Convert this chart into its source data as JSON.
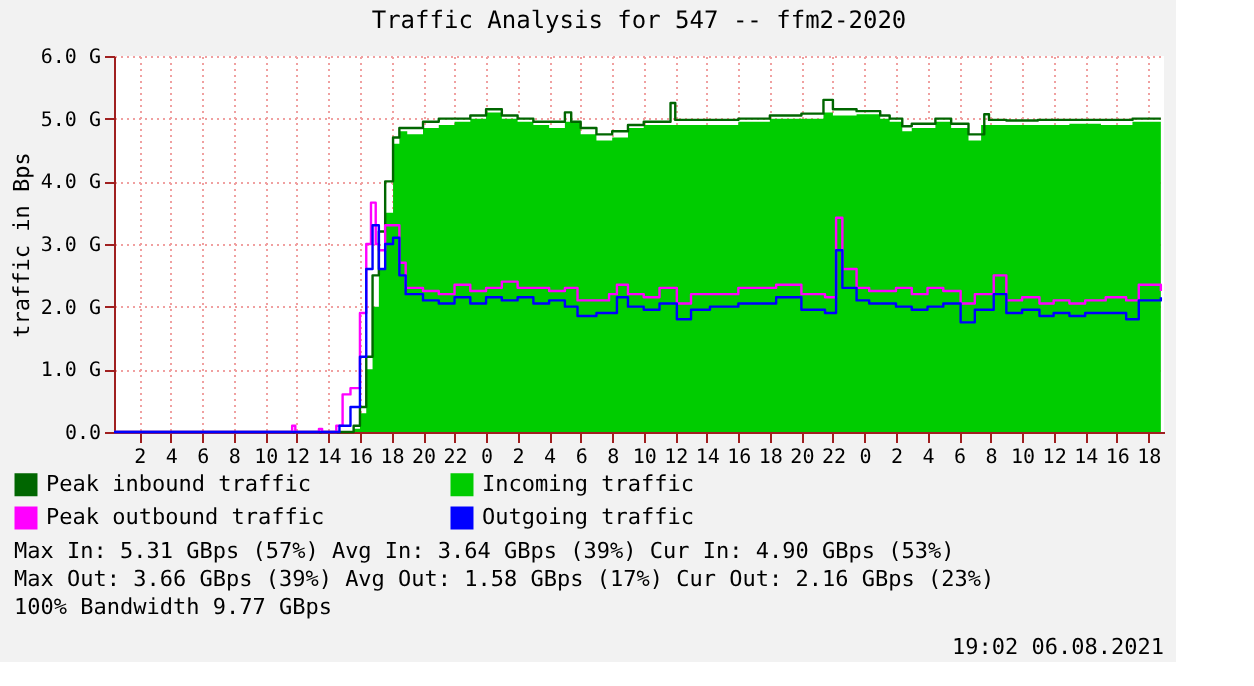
{
  "chart_data": {
    "type": "step",
    "title": "Traffic Analysis for 547 -- ffm2-2020",
    "ylabel": "traffic in Bps",
    "xlim": [
      "2021-08-04T00:24",
      "2021-08-06T19:00"
    ],
    "xticks": [
      {
        "value": "2021-08-04T02:00",
        "label": "2"
      },
      {
        "value": "2021-08-04T04:00",
        "label": "4"
      },
      {
        "value": "2021-08-04T06:00",
        "label": "6"
      },
      {
        "value": "2021-08-04T08:00",
        "label": "8"
      },
      {
        "value": "2021-08-04T10:00",
        "label": "10"
      },
      {
        "value": "2021-08-04T12:00",
        "label": "12"
      },
      {
        "value": "2021-08-04T14:00",
        "label": "14"
      },
      {
        "value": "2021-08-04T16:00",
        "label": "16"
      },
      {
        "value": "2021-08-04T18:00",
        "label": "18"
      },
      {
        "value": "2021-08-04T20:00",
        "label": "20"
      },
      {
        "value": "2021-08-04T22:00",
        "label": "22"
      },
      {
        "value": "2021-08-05T00:00",
        "label": "0"
      },
      {
        "value": "2021-08-05T02:00",
        "label": "2"
      },
      {
        "value": "2021-08-05T04:00",
        "label": "4"
      },
      {
        "value": "2021-08-05T06:00",
        "label": "6"
      },
      {
        "value": "2021-08-05T08:00",
        "label": "8"
      },
      {
        "value": "2021-08-05T10:00",
        "label": "10"
      },
      {
        "value": "2021-08-05T12:00",
        "label": "12"
      },
      {
        "value": "2021-08-05T14:00",
        "label": "14"
      },
      {
        "value": "2021-08-05T16:00",
        "label": "16"
      },
      {
        "value": "2021-08-05T18:00",
        "label": "18"
      },
      {
        "value": "2021-08-05T20:00",
        "label": "20"
      },
      {
        "value": "2021-08-05T22:00",
        "label": "22"
      },
      {
        "value": "2021-08-06T00:00",
        "label": "0"
      },
      {
        "value": "2021-08-06T02:00",
        "label": "2"
      },
      {
        "value": "2021-08-06T04:00",
        "label": "4"
      },
      {
        "value": "2021-08-06T06:00",
        "label": "6"
      },
      {
        "value": "2021-08-06T08:00",
        "label": "8"
      },
      {
        "value": "2021-08-06T10:00",
        "label": "10"
      },
      {
        "value": "2021-08-06T12:00",
        "label": "12"
      },
      {
        "value": "2021-08-06T14:00",
        "label": "14"
      },
      {
        "value": "2021-08-06T16:00",
        "label": "16"
      },
      {
        "value": "2021-08-06T18:00",
        "label": "18"
      }
    ],
    "ylim": [
      0,
      6
    ],
    "yticks": [
      {
        "value": 0,
        "label": "0.0"
      },
      {
        "value": 1,
        "label": "1.0 G"
      },
      {
        "value": 2,
        "label": "2.0 G"
      },
      {
        "value": 3,
        "label": "3.0 G"
      },
      {
        "value": 4,
        "label": "4.0 G"
      },
      {
        "value": 5,
        "label": "5.0 G"
      },
      {
        "value": 6,
        "label": "6.0 G"
      }
    ],
    "grid": true,
    "legend": "bottom",
    "series": [
      {
        "name": "Peak inbound traffic",
        "color": "#006600",
        "x": [
          "2021-08-04T00:24",
          "2021-08-04T15:12",
          "2021-08-04T15:36",
          "2021-08-04T16:00",
          "2021-08-04T16:24",
          "2021-08-04T16:48",
          "2021-08-04T17:12",
          "2021-08-04T17:36",
          "2021-08-04T18:06",
          "2021-08-04T18:30",
          "2021-08-04T19:00",
          "2021-08-04T20:00",
          "2021-08-04T21:00",
          "2021-08-04T22:00",
          "2021-08-04T23:00",
          "2021-08-05T00:00",
          "2021-08-05T01:00",
          "2021-08-05T02:00",
          "2021-08-05T03:00",
          "2021-08-05T04:00",
          "2021-08-05T05:00",
          "2021-08-05T05:24",
          "2021-08-05T06:00",
          "2021-08-05T07:00",
          "2021-08-05T08:00",
          "2021-08-05T09:00",
          "2021-08-05T10:00",
          "2021-08-05T11:30",
          "2021-08-05T11:42",
          "2021-08-05T12:00",
          "2021-08-05T14:00",
          "2021-08-05T16:00",
          "2021-08-05T18:00",
          "2021-08-05T20:00",
          "2021-08-05T21:24",
          "2021-08-05T22:00",
          "2021-08-05T23:30",
          "2021-08-06T01:00",
          "2021-08-06T01:36",
          "2021-08-06T02:24",
          "2021-08-06T03:00",
          "2021-08-06T04:30",
          "2021-08-06T05:30",
          "2021-08-06T06:36",
          "2021-08-06T07:36",
          "2021-08-06T07:54",
          "2021-08-06T09:00",
          "2021-08-06T11:00",
          "2021-08-06T13:00",
          "2021-08-06T15:00",
          "2021-08-06T17:00",
          "2021-08-06T18:48"
        ],
        "values": [
          0,
          0,
          0.1,
          0.4,
          1.2,
          2.5,
          3.2,
          4.0,
          4.7,
          4.85,
          4.85,
          4.95,
          5.0,
          5.0,
          5.05,
          5.15,
          5.05,
          5.0,
          4.95,
          4.95,
          5.1,
          4.95,
          4.85,
          4.75,
          4.8,
          4.9,
          4.95,
          4.95,
          5.25,
          4.98,
          4.98,
          5.0,
          5.05,
          5.08,
          5.3,
          5.15,
          5.12,
          5.05,
          5.0,
          4.88,
          4.92,
          5.0,
          4.92,
          4.75,
          5.07,
          4.98,
          4.97,
          4.98,
          4.98,
          4.98,
          5.0,
          5.0
        ]
      },
      {
        "name": "Incoming traffic",
        "color": "#00cc00",
        "type": "area",
        "x": [
          "2021-08-04T00:24",
          "2021-08-04T15:12",
          "2021-08-04T15:36",
          "2021-08-04T16:00",
          "2021-08-04T16:24",
          "2021-08-04T16:48",
          "2021-08-04T17:12",
          "2021-08-04T17:36",
          "2021-08-04T18:06",
          "2021-08-04T18:30",
          "2021-08-04T19:00",
          "2021-08-04T20:00",
          "2021-08-04T21:00",
          "2021-08-04T22:00",
          "2021-08-04T23:00",
          "2021-08-05T00:00",
          "2021-08-05T01:00",
          "2021-08-05T02:00",
          "2021-08-05T03:00",
          "2021-08-05T04:00",
          "2021-08-05T05:00",
          "2021-08-05T06:00",
          "2021-08-05T07:00",
          "2021-08-05T08:00",
          "2021-08-05T09:00",
          "2021-08-05T10:00",
          "2021-08-05T12:00",
          "2021-08-05T14:00",
          "2021-08-05T16:00",
          "2021-08-05T18:00",
          "2021-08-05T20:00",
          "2021-08-05T21:24",
          "2021-08-05T22:00",
          "2021-08-05T23:30",
          "2021-08-06T01:00",
          "2021-08-06T01:36",
          "2021-08-06T02:24",
          "2021-08-06T03:00",
          "2021-08-06T04:30",
          "2021-08-06T05:30",
          "2021-08-06T06:36",
          "2021-08-06T07:24",
          "2021-08-06T09:00",
          "2021-08-06T11:00",
          "2021-08-06T13:00",
          "2021-08-06T15:00",
          "2021-08-06T17:00",
          "2021-08-06T18:48"
        ],
        "values": [
          0,
          0,
          0.05,
          0.3,
          1.0,
          2.0,
          2.6,
          3.5,
          4.6,
          4.8,
          4.75,
          4.85,
          4.9,
          4.95,
          5.0,
          5.1,
          5.0,
          4.95,
          4.9,
          4.85,
          4.95,
          4.75,
          4.65,
          4.7,
          4.85,
          4.9,
          4.9,
          4.9,
          4.95,
          5.0,
          5.0,
          5.1,
          5.05,
          5.07,
          5.0,
          4.95,
          4.8,
          4.85,
          4.95,
          4.85,
          4.65,
          4.9,
          4.9,
          4.9,
          4.92,
          4.9,
          4.95,
          4.95
        ]
      },
      {
        "name": "Peak outbound traffic",
        "color": "#ff00ff",
        "x": [
          "2021-08-04T00:24",
          "2021-08-04T11:36",
          "2021-08-04T11:42",
          "2021-08-04T11:54",
          "2021-08-04T13:18",
          "2021-08-04T13:24",
          "2021-08-04T13:36",
          "2021-08-04T14:24",
          "2021-08-04T14:30",
          "2021-08-04T14:54",
          "2021-08-04T15:24",
          "2021-08-04T16:00",
          "2021-08-04T16:24",
          "2021-08-04T16:42",
          "2021-08-04T17:00",
          "2021-08-04T17:12",
          "2021-08-04T17:36",
          "2021-08-04T18:06",
          "2021-08-04T18:30",
          "2021-08-04T18:54",
          "2021-08-04T20:00",
          "2021-08-04T21:00",
          "2021-08-04T22:00",
          "2021-08-04T23:00",
          "2021-08-05T00:00",
          "2021-08-05T01:00",
          "2021-08-05T02:00",
          "2021-08-05T03:00",
          "2021-08-05T04:00",
          "2021-08-05T05:00",
          "2021-08-05T05:48",
          "2021-08-05T07:00",
          "2021-08-05T07:48",
          "2021-08-05T08:18",
          "2021-08-05T09:00",
          "2021-08-05T10:00",
          "2021-08-05T11:00",
          "2021-08-05T12:06",
          "2021-08-05T13:00",
          "2021-08-05T14:12",
          "2021-08-05T16:00",
          "2021-08-05T18:24",
          "2021-08-05T20:00",
          "2021-08-05T21:30",
          "2021-08-05T22:12",
          "2021-08-05T22:36",
          "2021-08-05T23:30",
          "2021-08-06T00:18",
          "2021-08-06T02:00",
          "2021-08-06T03:00",
          "2021-08-06T04:00",
          "2021-08-06T05:00",
          "2021-08-06T06:06",
          "2021-08-06T07:00",
          "2021-08-06T08:12",
          "2021-08-06T09:00",
          "2021-08-06T10:00",
          "2021-08-06T11:06",
          "2021-08-06T12:00",
          "2021-08-06T13:00",
          "2021-08-06T14:00",
          "2021-08-06T15:18",
          "2021-08-06T16:36",
          "2021-08-06T17:24",
          "2021-08-06T18:48"
        ],
        "values": [
          0,
          0,
          0.1,
          0,
          0,
          0.05,
          0,
          0,
          0.1,
          0.6,
          0.7,
          1.9,
          3.0,
          3.66,
          3.0,
          2.9,
          3.3,
          3.3,
          2.7,
          2.3,
          2.25,
          2.2,
          2.35,
          2.25,
          2.3,
          2.4,
          2.3,
          2.3,
          2.25,
          2.3,
          2.1,
          2.1,
          2.2,
          2.35,
          2.2,
          2.15,
          2.3,
          2.05,
          2.2,
          2.2,
          2.3,
          2.35,
          2.2,
          2.15,
          3.42,
          2.6,
          2.3,
          2.25,
          2.3,
          2.2,
          2.3,
          2.25,
          2.05,
          2.2,
          2.5,
          2.1,
          2.15,
          2.05,
          2.1,
          2.05,
          2.1,
          2.15,
          2.1,
          2.35,
          2.25
        ]
      },
      {
        "name": "Outgoing traffic",
        "color": "#0000ff",
        "x": [
          "2021-08-04T00:24",
          "2021-08-04T14:30",
          "2021-08-04T14:42",
          "2021-08-04T15:24",
          "2021-08-04T16:00",
          "2021-08-04T16:24",
          "2021-08-04T16:48",
          "2021-08-04T17:12",
          "2021-08-04T17:36",
          "2021-08-04T18:06",
          "2021-08-04T18:30",
          "2021-08-04T18:54",
          "2021-08-04T20:00",
          "2021-08-04T21:00",
          "2021-08-04T22:00",
          "2021-08-04T23:00",
          "2021-08-05T00:00",
          "2021-08-05T01:00",
          "2021-08-05T02:00",
          "2021-08-05T03:00",
          "2021-08-05T04:00",
          "2021-08-05T05:00",
          "2021-08-05T05:48",
          "2021-08-05T07:00",
          "2021-08-05T07:48",
          "2021-08-05T08:18",
          "2021-08-05T09:00",
          "2021-08-05T10:00",
          "2021-08-05T11:00",
          "2021-08-05T12:06",
          "2021-08-05T13:00",
          "2021-08-05T14:12",
          "2021-08-05T16:00",
          "2021-08-05T18:24",
          "2021-08-05T20:00",
          "2021-08-05T21:30",
          "2021-08-05T22:12",
          "2021-08-05T22:36",
          "2021-08-05T23:30",
          "2021-08-06T00:18",
          "2021-08-06T02:00",
          "2021-08-06T03:00",
          "2021-08-06T04:00",
          "2021-08-06T05:00",
          "2021-08-06T06:06",
          "2021-08-06T07:00",
          "2021-08-06T08:12",
          "2021-08-06T09:00",
          "2021-08-06T10:00",
          "2021-08-06T11:06",
          "2021-08-06T12:00",
          "2021-08-06T13:00",
          "2021-08-06T14:00",
          "2021-08-06T15:18",
          "2021-08-06T16:36",
          "2021-08-06T17:24",
          "2021-08-06T18:48"
        ],
        "values": [
          0,
          0,
          0.1,
          0.4,
          1.2,
          2.6,
          3.3,
          2.6,
          3.0,
          3.1,
          2.5,
          2.2,
          2.1,
          2.05,
          2.15,
          2.05,
          2.15,
          2.1,
          2.15,
          2.05,
          2.1,
          2.0,
          1.85,
          1.9,
          1.9,
          2.15,
          2.0,
          1.95,
          2.05,
          1.8,
          1.95,
          2.0,
          2.05,
          2.15,
          1.95,
          1.9,
          2.9,
          2.3,
          2.1,
          2.05,
          2.0,
          1.95,
          2.0,
          2.05,
          1.75,
          1.95,
          2.2,
          1.9,
          1.95,
          1.85,
          1.9,
          1.85,
          1.9,
          1.9,
          1.8,
          2.1,
          2.15
        ]
      }
    ],
    "annotations": [
      "Max In:   5.31 GBps (57%)  Avg In:   3.64 GBps (39%)  Cur In:   4.90 GBps (53%)",
      "Max Out:  3.66 GBps (39%)  Avg Out:  1.58 GBps (17%)  Cur Out:  2.16 GBps (23%)",
      "100% Bandwidth 9.77 GBps",
      "19:02 06.08.2021"
    ]
  }
}
